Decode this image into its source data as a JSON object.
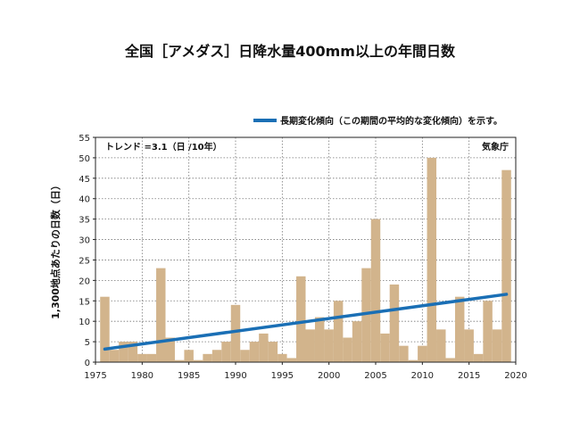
{
  "chart_data": {
    "type": "bar",
    "title": "全国［アメダス］日降水量400mm以上の年間日数",
    "ylabel": "1,300地点あたりの日数（日）",
    "xlabel": "",
    "legend": {
      "label": "長期変化傾向（この期間の平均的な変化傾向）を示す。",
      "placement": "top-right"
    },
    "annotations": {
      "trend": "トレンド =3.1（日 /10年）",
      "source": "気象庁"
    },
    "xlim": [
      1975,
      2020
    ],
    "ylim": [
      0,
      55
    ],
    "xticks": [
      1975,
      1980,
      1985,
      1990,
      1995,
      2000,
      2005,
      2010,
      2015,
      2020
    ],
    "yticks": [
      0,
      5,
      10,
      15,
      20,
      25,
      30,
      35,
      40,
      45,
      50,
      55
    ],
    "grid": true,
    "x": [
      1976,
      1977,
      1978,
      1979,
      1980,
      1981,
      1982,
      1983,
      1984,
      1985,
      1986,
      1987,
      1988,
      1989,
      1990,
      1991,
      1992,
      1993,
      1994,
      1995,
      1996,
      1997,
      1998,
      1999,
      2000,
      2001,
      2002,
      2003,
      2004,
      2005,
      2006,
      2007,
      2008,
      2009,
      2010,
      2011,
      2012,
      2013,
      2014,
      2015,
      2016,
      2017,
      2018,
      2019
    ],
    "values": [
      16,
      3,
      5,
      5,
      2,
      2,
      23,
      6,
      0.5,
      3,
      0.5,
      2,
      3,
      5,
      14,
      3,
      5,
      7,
      5,
      2,
      1,
      21,
      8,
      11,
      8,
      15,
      6,
      10,
      23,
      35,
      7,
      19,
      4,
      0.5,
      4,
      50,
      8,
      1,
      16,
      8,
      2,
      15,
      8,
      47
    ],
    "trend_line": {
      "x": [
        1976,
        2019
      ],
      "y": [
        3.2,
        16.6
      ]
    },
    "colors": {
      "bar": "#d2b48c",
      "trend": "#1a6fb5",
      "grid": "#777777",
      "axis": "#222222"
    }
  }
}
